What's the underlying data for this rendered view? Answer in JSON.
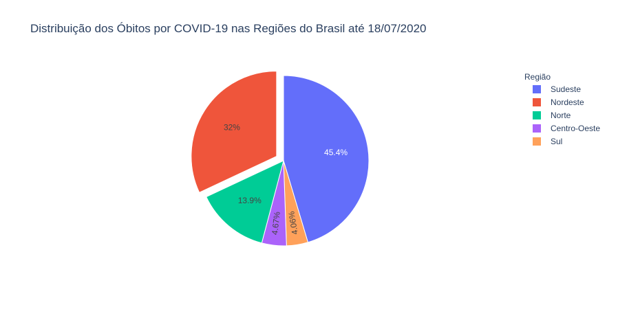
{
  "chart_data": {
    "type": "pie",
    "title": "Distribuição dos Óbitos por COVID-19 nas Regiões do Brasil até 18/07/2020",
    "legend": {
      "title": "Região",
      "placement": "right"
    },
    "slices": [
      {
        "name": "Sudeste",
        "value": 45.4,
        "label": "45.4%",
        "color": "#636efa",
        "label_color": "#ffffff",
        "pulled": false
      },
      {
        "name": "Sul",
        "value": 4.06,
        "label": "4.06%",
        "color": "#ffa15a",
        "label_color": "#444444",
        "pulled": false
      },
      {
        "name": "Centro-Oeste",
        "value": 4.67,
        "label": "4.67%",
        "color": "#ab63fa",
        "label_color": "#444444",
        "pulled": false
      },
      {
        "name": "Norte",
        "value": 13.9,
        "label": "13.9%",
        "color": "#00cc96",
        "label_color": "#444444",
        "pulled": false
      },
      {
        "name": "Nordeste",
        "value": 32,
        "label": "32%",
        "color": "#ef553b",
        "label_color": "#444444",
        "pulled": true
      }
    ],
    "legend_order": [
      "Sudeste",
      "Nordeste",
      "Norte",
      "Centro-Oeste",
      "Sul"
    ]
  }
}
